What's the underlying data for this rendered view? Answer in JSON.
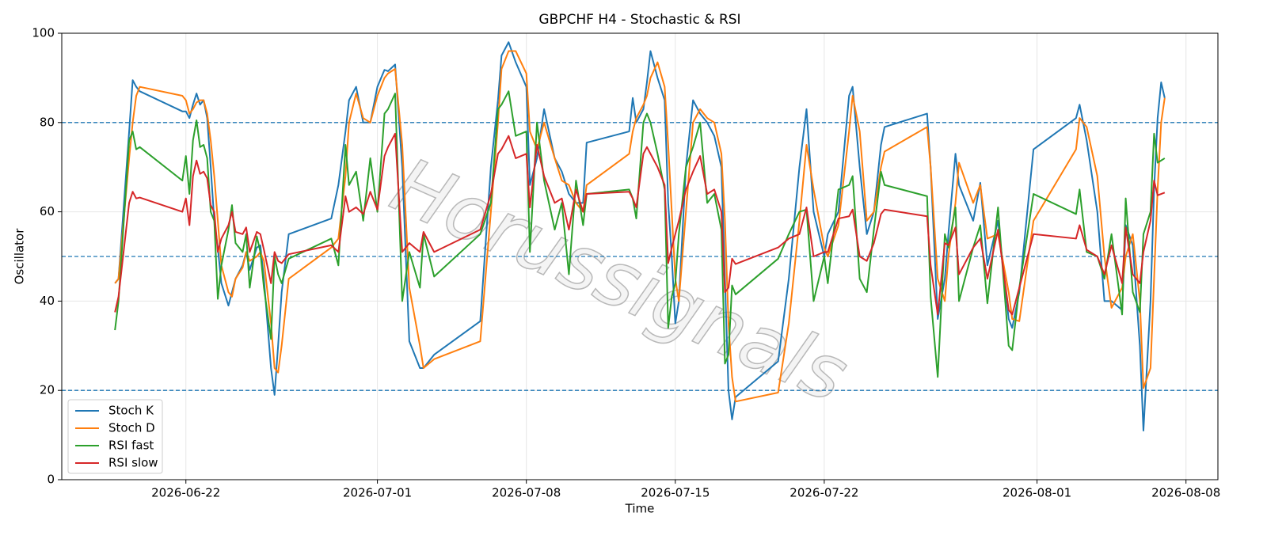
{
  "chart_data": {
    "type": "line",
    "title": "GBPCHF H4 - Stochastic & RSI",
    "x_label": "Time",
    "y_label": "Oscillator",
    "watermark": "Horussignals",
    "xlim": [
      "2026-06-16T04:00",
      "2026-08-09T12:00"
    ],
    "xticks": [
      "2026-06-22",
      "2026-07-01",
      "2026-07-08",
      "2026-07-15",
      "2026-07-22",
      "2026-08-01",
      "2026-08-08"
    ],
    "ylim": [
      0,
      100
    ],
    "yticks": [
      0,
      20,
      40,
      60,
      80,
      100
    ],
    "grid": true,
    "legend": "lower left",
    "hlines": [
      20,
      50,
      80
    ],
    "hline_color": "#1f77b4",
    "x": [
      "2026-06-18T16:00",
      "2026-06-18T20:00",
      "2026-06-19T08:00",
      "2026-06-19T12:00",
      "2026-06-19T16:00",
      "2026-06-19T20:00",
      "2026-06-21T20:00",
      "2026-06-22T00:00",
      "2026-06-22T04:00",
      "2026-06-22T08:00",
      "2026-06-22T12:00",
      "2026-06-22T16:00",
      "2026-06-22T20:00",
      "2026-06-23T00:00",
      "2026-06-23T04:00",
      "2026-06-23T08:00",
      "2026-06-23T12:00",
      "2026-06-23T16:00",
      "2026-06-24T00:00",
      "2026-06-24T04:00",
      "2026-06-24T08:00",
      "2026-06-24T16:00",
      "2026-06-24T20:00",
      "2026-06-25T00:00",
      "2026-06-25T08:00",
      "2026-06-25T12:00",
      "2026-06-25T16:00",
      "2026-06-26T00:00",
      "2026-06-26T04:00",
      "2026-06-26T08:00",
      "2026-06-26T12:00",
      "2026-06-26T20:00",
      "2026-06-28T20:00",
      "2026-06-29T04:00",
      "2026-06-29T12:00",
      "2026-06-29T16:00",
      "2026-06-30T00:00",
      "2026-06-30T08:00",
      "2026-06-30T16:00",
      "2026-07-01T00:00",
      "2026-07-01T08:00",
      "2026-07-01T12:00",
      "2026-07-01T20:00",
      "2026-07-02T04:00",
      "2026-07-02T12:00",
      "2026-07-03T00:00",
      "2026-07-03T04:00",
      "2026-07-03T16:00",
      "2026-07-05T20:00",
      "2026-07-06T08:00",
      "2026-07-06T16:00",
      "2026-07-06T20:00",
      "2026-07-07T04:00",
      "2026-07-07T12:00",
      "2026-07-08T00:00",
      "2026-07-08T04:00",
      "2026-07-08T12:00",
      "2026-07-08T20:00",
      "2026-07-09T08:00",
      "2026-07-09T16:00",
      "2026-07-10T00:00",
      "2026-07-10T08:00",
      "2026-07-10T16:00",
      "2026-07-10T20:00",
      "2026-07-12T20:00",
      "2026-07-13T00:00",
      "2026-07-13T04:00",
      "2026-07-13T12:00",
      "2026-07-13T16:00",
      "2026-07-13T20:00",
      "2026-07-14T04:00",
      "2026-07-14T12:00",
      "2026-07-14T16:00",
      "2026-07-14T20:00",
      "2026-07-15T00:00",
      "2026-07-15T04:00",
      "2026-07-15T12:00",
      "2026-07-15T20:00",
      "2026-07-16T04:00",
      "2026-07-16T12:00",
      "2026-07-16T20:00",
      "2026-07-17T04:00",
      "2026-07-17T08:00",
      "2026-07-17T12:00",
      "2026-07-17T16:00",
      "2026-07-17T20:00",
      "2026-07-19T20:00",
      "2026-07-20T08:00",
      "2026-07-20T20:00",
      "2026-07-21T04:00",
      "2026-07-21T12:00",
      "2026-07-22T00:00",
      "2026-07-22T04:00",
      "2026-07-22T16:00",
      "2026-07-23T04:00",
      "2026-07-23T08:00",
      "2026-07-23T16:00",
      "2026-07-24T00:00",
      "2026-07-24T08:00",
      "2026-07-24T16:00",
      "2026-07-24T20:00",
      "2026-07-26T20:00",
      "2026-07-27T00:00",
      "2026-07-27T08:00",
      "2026-07-27T16:00",
      "2026-07-27T20:00",
      "2026-07-28T04:00",
      "2026-07-28T08:00",
      "2026-07-29T00:00",
      "2026-07-29T08:00",
      "2026-07-29T16:00",
      "2026-07-30T04:00",
      "2026-07-30T16:00",
      "2026-07-30T20:00",
      "2026-07-31T04:00",
      "2026-07-31T20:00",
      "2026-08-02T20:00",
      "2026-08-03T00:00",
      "2026-08-03T08:00",
      "2026-08-03T20:00",
      "2026-08-04T04:00",
      "2026-08-04T12:00",
      "2026-08-05T00:00",
      "2026-08-05T04:00",
      "2026-08-05T12:00",
      "2026-08-05T20:00",
      "2026-08-06T00:00",
      "2026-08-06T08:00",
      "2026-08-06T12:00",
      "2026-08-06T16:00",
      "2026-08-06T20:00",
      "2026-08-07T00:00"
    ],
    "series": [
      {
        "name": "Stoch K",
        "color": "#1f77b4",
        "values": [
          44,
          45,
          78,
          89.5,
          88,
          87,
          82.5,
          82.5,
          81,
          84,
          86.5,
          84,
          85,
          81,
          70,
          58,
          52,
          44,
          39,
          42,
          45,
          48,
          51,
          47,
          52,
          52.5,
          45,
          25,
          19,
          30,
          42,
          55,
          58.5,
          66,
          78,
          85,
          88,
          80,
          80,
          88,
          91.8,
          91.5,
          93,
          70,
          31,
          25,
          25,
          28,
          35.5,
          70,
          85,
          95,
          98,
          93.5,
          88,
          66,
          72,
          83,
          72,
          69,
          64,
          62,
          62,
          75.5,
          78,
          85.5,
          80,
          83,
          89,
          96,
          90,
          85,
          62,
          50,
          35,
          40,
          70,
          85,
          82,
          80,
          77,
          70,
          45,
          20,
          13.5,
          18.5,
          26.5,
          45,
          70,
          83,
          60,
          50,
          55,
          60,
          86,
          88,
          70,
          55,
          60,
          75,
          79,
          82,
          70,
          36,
          45,
          55,
          73,
          66,
          58,
          66.5,
          48,
          58,
          36,
          34,
          42,
          74,
          81,
          84,
          76,
          60,
          40,
          40,
          38,
          57,
          52.5,
          30,
          11,
          40,
          65,
          81,
          89,
          85.5
        ]
      },
      {
        "name": "Stoch D",
        "color": "#ff7f0e",
        "values": [
          44,
          45,
          72,
          80,
          86,
          88,
          86,
          85,
          82,
          83,
          84.5,
          85,
          85,
          82,
          76,
          68,
          58,
          48,
          42,
          41,
          45,
          47.5,
          51,
          49,
          50,
          51,
          49,
          35,
          25,
          24,
          30,
          45,
          52,
          54,
          68,
          80,
          86.5,
          81,
          80,
          86,
          90,
          91,
          92,
          75,
          43,
          30,
          25,
          27,
          31,
          60,
          80,
          92,
          96,
          96,
          91,
          78,
          74,
          80,
          72,
          67,
          66,
          62,
          60,
          66,
          73,
          78,
          81,
          84,
          86,
          90,
          93.5,
          88,
          75,
          60,
          45,
          40,
          60,
          80,
          83,
          81,
          80,
          73,
          58,
          35,
          23,
          17.5,
          19.5,
          35,
          58,
          75,
          65,
          52,
          50,
          57,
          78,
          86,
          78,
          58,
          60,
          70,
          73.5,
          79,
          70,
          45,
          40,
          50,
          62,
          71,
          62,
          66,
          54,
          55,
          42,
          36,
          35.5,
          58,
          74,
          81,
          79,
          68,
          50,
          38.5,
          43,
          50,
          55,
          40,
          20.5,
          25,
          45,
          65,
          80,
          85.5
        ]
      },
      {
        "name": "RSI fast",
        "color": "#2ca02c",
        "values": [
          33.5,
          40,
          76,
          78,
          74,
          74.5,
          67,
          72.5,
          64,
          76,
          80.5,
          74.5,
          75,
          72,
          60,
          58,
          40.5,
          48,
          56,
          61.5,
          53,
          51,
          55,
          43,
          54.5,
          51,
          43,
          31.5,
          50,
          46,
          44,
          49.5,
          54,
          48,
          75,
          66,
          69,
          58,
          72,
          60,
          82,
          83,
          86.5,
          40,
          51,
          43,
          55,
          45.5,
          55,
          62,
          83,
          84,
          87,
          77,
          78,
          51,
          80,
          67,
          56,
          62,
          46,
          67,
          57,
          64,
          65,
          63,
          58.5,
          80,
          82,
          80,
          73,
          65,
          34,
          41,
          44,
          55,
          70,
          74.5,
          80,
          62,
          64,
          56,
          26,
          28,
          43.5,
          41.5,
          49.5,
          55,
          60,
          60.5,
          40,
          50,
          44,
          65,
          66,
          68,
          45,
          42,
          56,
          69,
          66,
          63.5,
          41,
          23,
          55,
          52,
          61,
          40,
          52,
          57,
          39.5,
          61,
          30,
          29,
          43,
          64,
          59.5,
          65,
          51,
          50,
          45,
          55,
          37,
          63,
          42,
          37.5,
          55,
          60,
          77.5,
          71,
          71.5,
          72
        ]
      },
      {
        "name": "RSI slow",
        "color": "#d62728",
        "values": [
          37.5,
          41,
          62,
          64.5,
          63,
          63.2,
          60,
          63,
          57,
          68,
          71.5,
          68.5,
          69,
          67.5,
          61.5,
          60,
          51,
          54,
          57,
          60,
          55.5,
          55,
          56.5,
          51,
          55.5,
          55,
          51.5,
          44,
          51,
          49,
          48.5,
          50.5,
          52.5,
          51,
          63.5,
          60,
          61,
          59.5,
          64.5,
          60.5,
          72.5,
          74.5,
          77.5,
          51,
          53,
          51,
          55.5,
          51,
          56,
          64,
          73,
          74,
          77,
          72,
          73,
          61,
          75,
          68,
          62,
          63,
          56,
          65,
          60,
          64,
          64.5,
          63,
          61,
          73,
          74.5,
          73,
          70,
          66,
          48.5,
          52,
          55,
          58,
          65,
          69,
          72.5,
          64,
          65,
          60,
          42,
          43,
          49.5,
          48.3,
          52,
          54,
          55,
          61,
          50,
          51,
          51,
          58.5,
          59,
          60.5,
          50,
          49,
          53,
          59.5,
          60.5,
          59,
          48,
          37,
          53,
          52.5,
          56.5,
          46,
          52,
          54,
          45,
          56,
          38,
          37,
          43,
          55,
          54,
          57,
          51.5,
          50,
          46,
          52.5,
          44,
          56.5,
          46,
          44,
          51,
          58,
          67,
          63.7,
          64,
          64.3
        ]
      }
    ]
  }
}
